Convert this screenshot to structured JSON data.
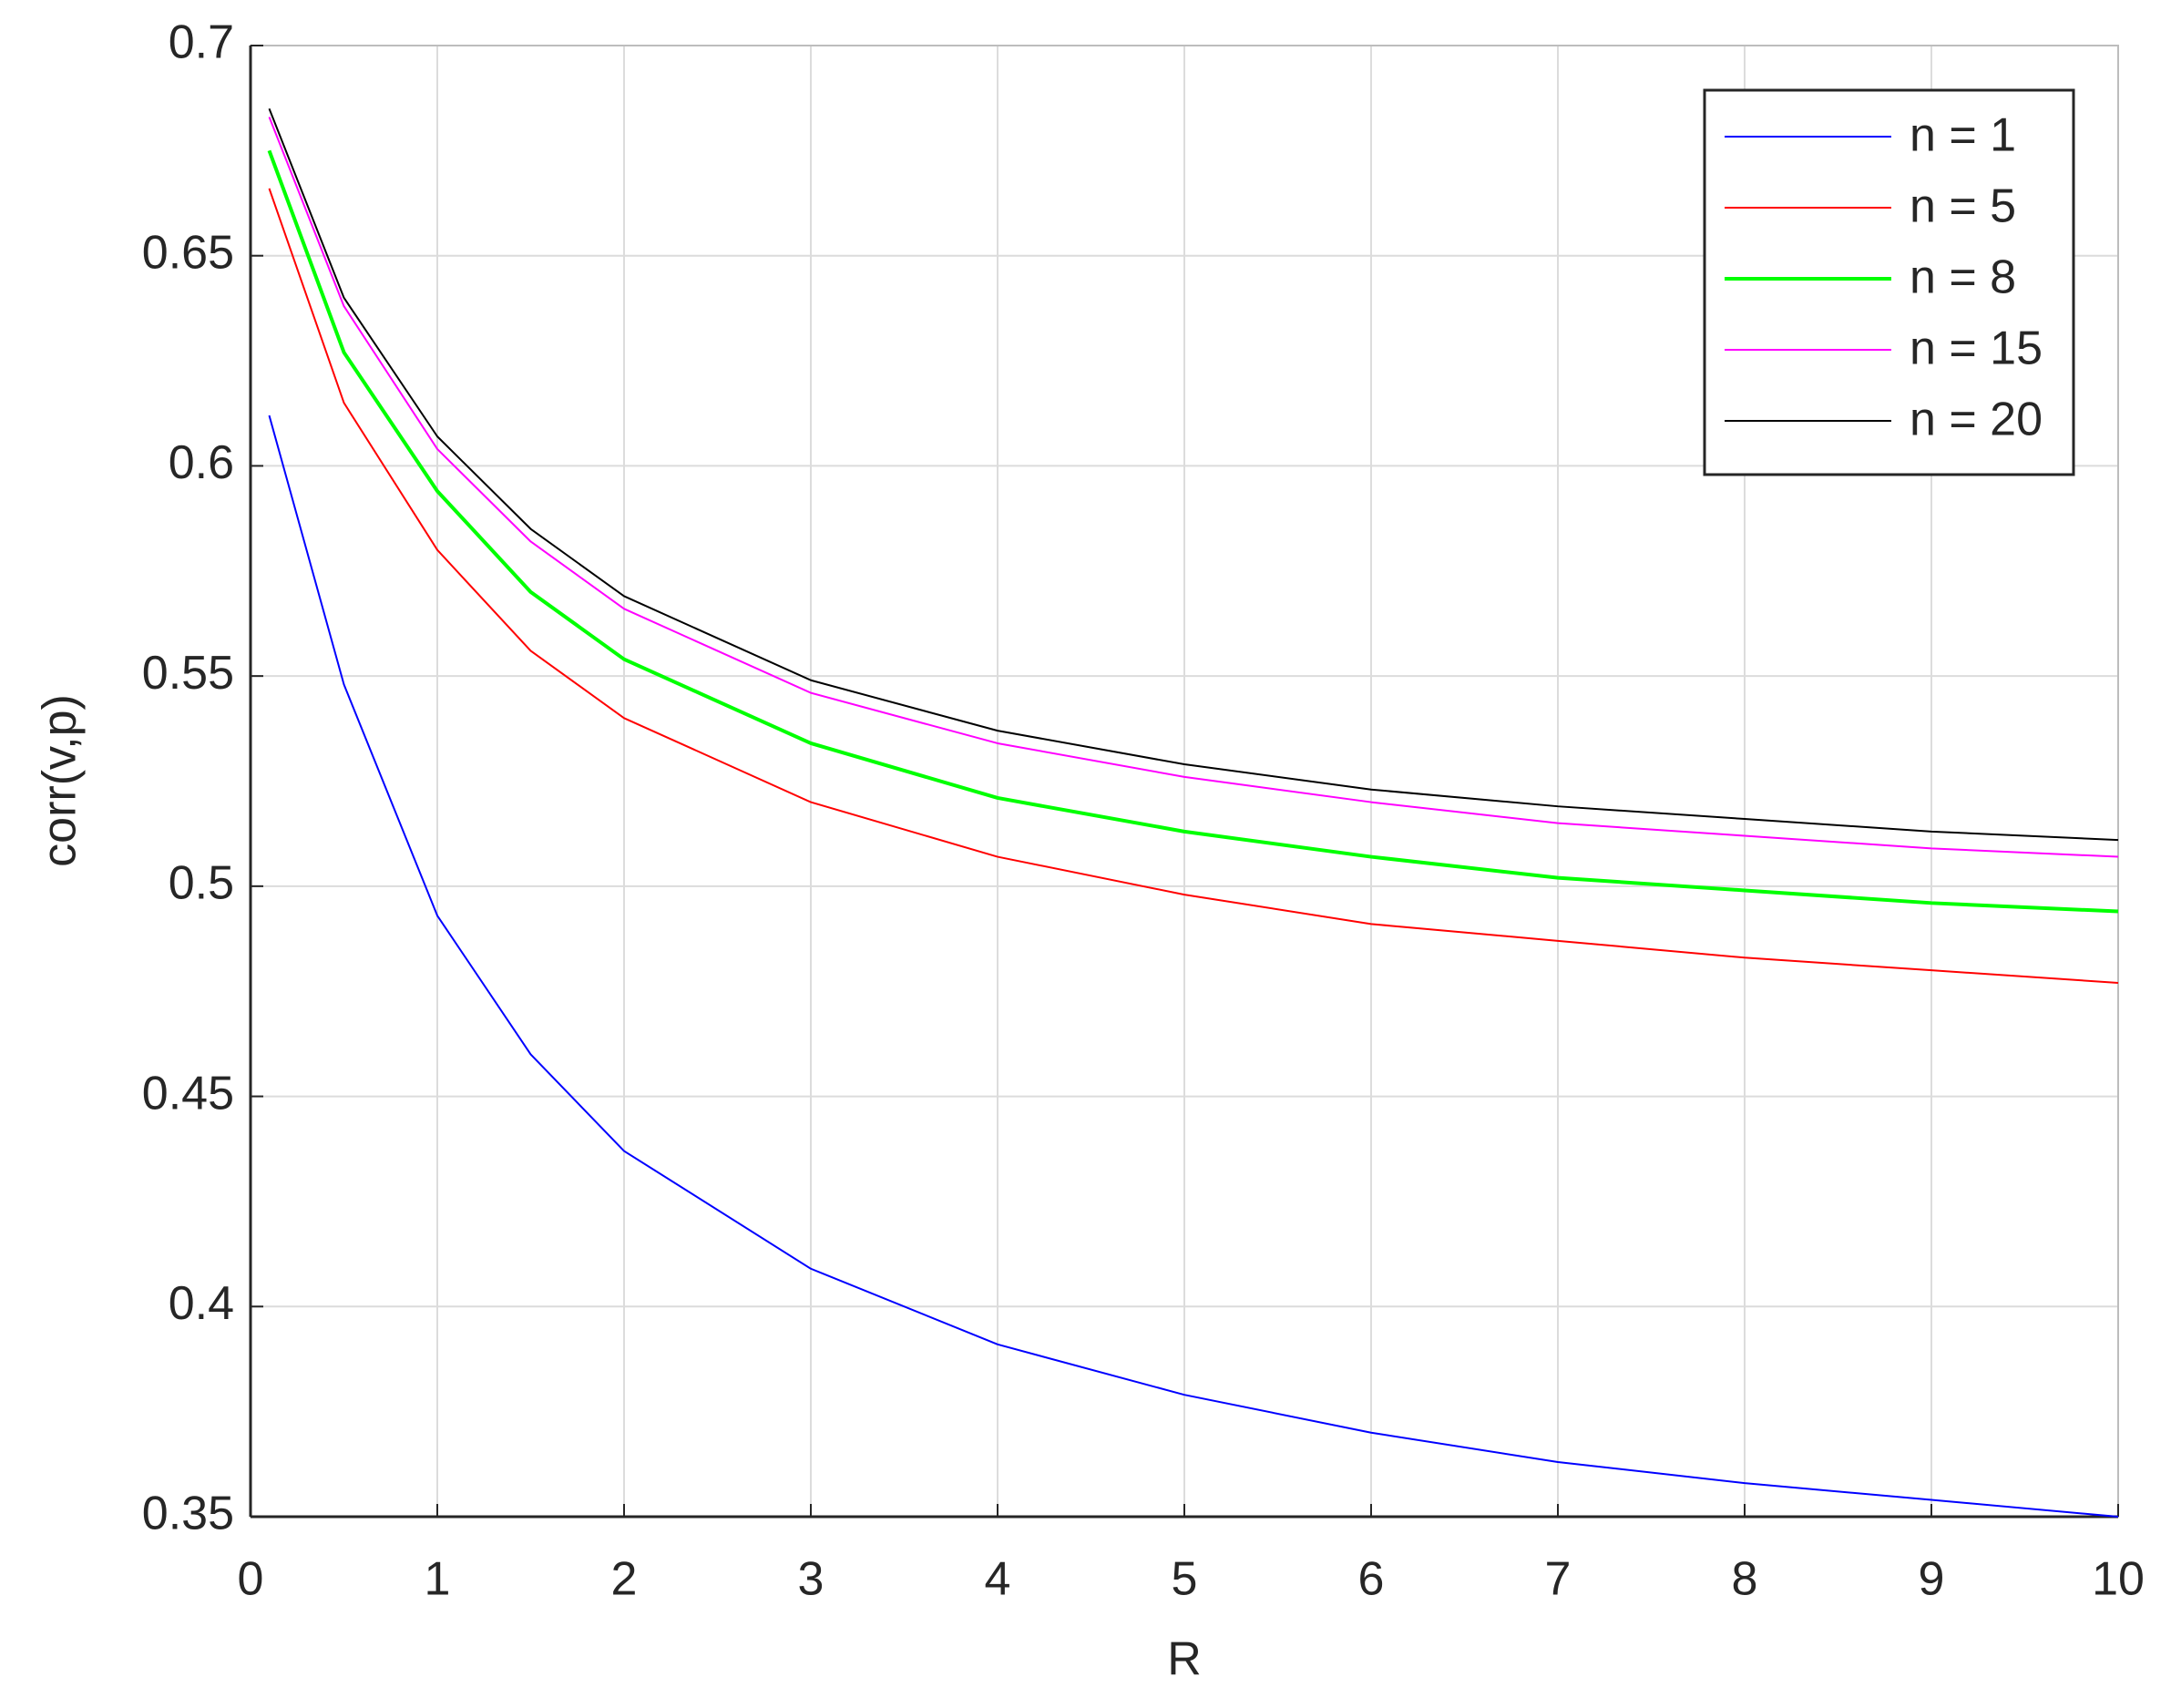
{
  "chart_data": {
    "type": "line",
    "x_label": "R",
    "y_label": "corr(v,p)",
    "x": [
      0.1,
      0.5,
      1,
      1.5,
      2,
      3,
      4,
      5,
      6,
      7,
      8,
      9,
      10
    ],
    "series": [
      {
        "name": "n = 1",
        "color": "#0000ff",
        "line_width": 1,
        "values": [
          0.612,
          0.548,
          0.493,
          0.46,
          0.437,
          0.409,
          0.391,
          0.379,
          0.37,
          0.363,
          0.358,
          0.354,
          0.35
        ]
      },
      {
        "name": "n = 5",
        "color": "#ff0000",
        "line_width": 1,
        "values": [
          0.666,
          0.615,
          0.58,
          0.556,
          0.54,
          0.52,
          0.507,
          0.498,
          0.491,
          0.487,
          0.483,
          0.48,
          0.477
        ]
      },
      {
        "name": "n = 8",
        "color": "#00ff00",
        "line_width": 2,
        "values": [
          0.675,
          0.627,
          0.594,
          0.57,
          0.554,
          0.534,
          0.521,
          0.513,
          0.507,
          0.502,
          0.499,
          0.496,
          0.494
        ]
      },
      {
        "name": "n = 15",
        "color": "#ff00ff",
        "line_width": 1,
        "values": [
          0.683,
          0.638,
          0.604,
          0.582,
          0.566,
          0.546,
          0.534,
          0.526,
          0.52,
          0.515,
          0.512,
          0.509,
          0.507
        ]
      },
      {
        "name": "n = 20",
        "color": "#000000",
        "line_width": 1,
        "values": [
          0.685,
          0.64,
          0.607,
          0.585,
          0.569,
          0.549,
          0.537,
          0.529,
          0.523,
          0.519,
          0.516,
          0.513,
          0.511
        ]
      }
    ],
    "xlim": [
      0,
      10
    ],
    "xticks": [
      0,
      1,
      2,
      3,
      4,
      5,
      6,
      7,
      8,
      9,
      10
    ],
    "ylim": [
      0.35,
      0.7
    ],
    "yticks": [
      0.35,
      0.4,
      0.45,
      0.5,
      0.55,
      0.6,
      0.65,
      0.7
    ],
    "grid": true,
    "legend": "upper right"
  }
}
